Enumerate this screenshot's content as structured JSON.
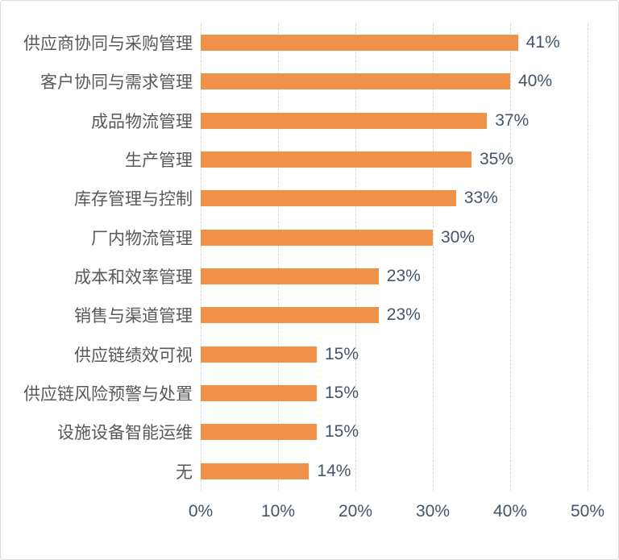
{
  "chart_data": {
    "type": "bar",
    "orientation": "horizontal",
    "title": "",
    "xlabel": "",
    "ylabel": "",
    "categories": [
      "供应商协同与采购管理",
      "客户协同与需求管理",
      "成品物流管理",
      "生产管理",
      "库存管理与控制",
      "厂内物流管理",
      "成本和效率管理",
      "销售与渠道管理",
      "供应链绩效可视",
      "供应链风险预警与处置",
      "设施设备智能运维",
      "无"
    ],
    "values": [
      41,
      40,
      37,
      35,
      33,
      30,
      23,
      23,
      15,
      15,
      15,
      14
    ],
    "value_labels": [
      "41%",
      "40%",
      "37%",
      "35%",
      "33%",
      "30%",
      "23%",
      "23%",
      "15%",
      "15%",
      "15%",
      "14%"
    ],
    "x_ticks": [
      "0%",
      "10%",
      "20%",
      "30%",
      "40%",
      "50%"
    ],
    "x_tick_values": [
      0,
      10,
      20,
      30,
      40,
      50
    ],
    "xlim": [
      0,
      50
    ],
    "grid": "vertical-dashed",
    "legend_position": "none",
    "bar_color": "#f0914a",
    "category_color": "#595959",
    "value_color": "#44546a",
    "grid_color": "#d9d9d9",
    "frame_color": "#dcdcdc"
  }
}
